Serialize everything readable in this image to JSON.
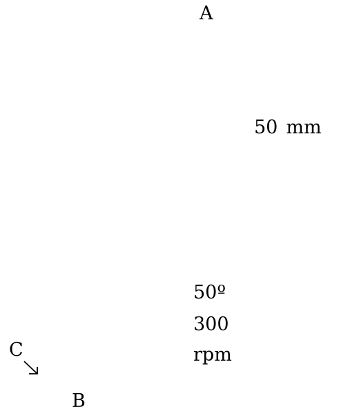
{
  "diagram": {
    "labels": {
      "point_a": "A",
      "point_b": "B",
      "point_c": "C",
      "length_value": "50",
      "length_unit": "mm",
      "angle": "50º",
      "speed_value": "300",
      "speed_unit": "rpm"
    },
    "icons": {
      "c_arrow": "arrow-down-right-icon"
    },
    "colors": {
      "text": "#000000",
      "background": "#ffffff"
    }
  }
}
